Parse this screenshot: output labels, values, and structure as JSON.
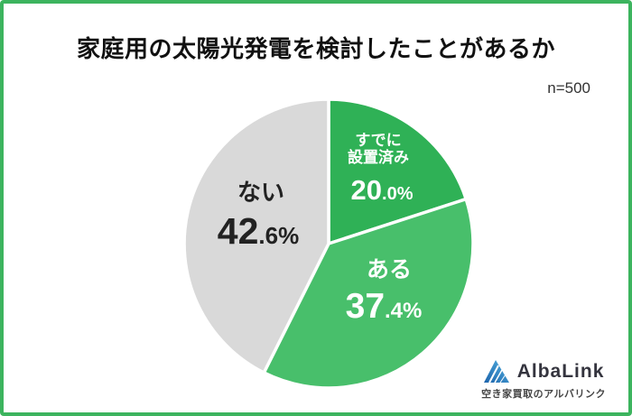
{
  "frame": {
    "border_color": "#3cb45e",
    "background": "#ffffff"
  },
  "header": {
    "title": "家庭用の太陽光発電を検討したことがあるか",
    "sample_size": "n=500"
  },
  "chart_data": {
    "type": "pie",
    "title": "家庭用の太陽光発電を検討したことがあるか",
    "sample_label": "n=500",
    "start_angle_deg": 0,
    "direction": "clockwise",
    "legend_position": "none",
    "slices": [
      {
        "label": "すでに設置済み",
        "label_lines": [
          "すでに",
          "設置済み"
        ],
        "value_pct": 20.0,
        "value_big": "20",
        "value_small": ".0%",
        "color": "#2fb156",
        "label_color": "#ffffff"
      },
      {
        "label": "ある",
        "value_pct": 37.4,
        "value_big": "37",
        "value_small": ".4%",
        "color": "#48bf6b",
        "label_color": "#ffffff"
      },
      {
        "label": "ない",
        "value_pct": 42.6,
        "value_big": "42",
        "value_small": ".6%",
        "color": "#d9d9d9",
        "label_color": "#222222"
      }
    ]
  },
  "footer_logo": {
    "brand": "AlbaLink",
    "tagline": "空き家買取のアルバリンク",
    "icon": "albalink-triangle-icon",
    "icon_dark_blue": "#1c63ab",
    "icon_light_blue": "#52b0e0",
    "brand_color": "#34343e",
    "tagline_color": "#444444"
  }
}
